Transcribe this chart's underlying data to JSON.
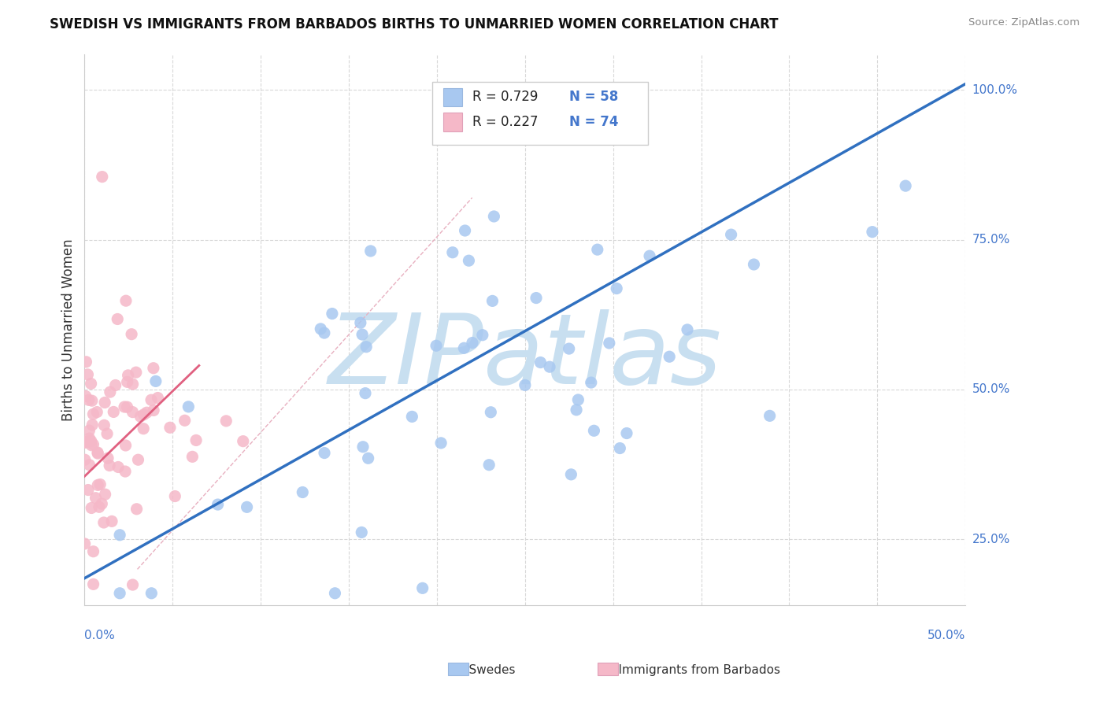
{
  "title": "SWEDISH VS IMMIGRANTS FROM BARBADOS BIRTHS TO UNMARRIED WOMEN CORRELATION CHART",
  "source": "Source: ZipAtlas.com",
  "ylabel_label": "Births to Unmarried Women",
  "yticks_right": [
    "25.0%",
    "50.0%",
    "75.0%",
    "100.0%"
  ],
  "yticks_right_vals": [
    0.25,
    0.5,
    0.75,
    1.0
  ],
  "xmin": 0.0,
  "xmax": 0.5,
  "ymin": 0.14,
  "ymax": 1.06,
  "legend_r1": "R = 0.729",
  "legend_n1": "N = 58",
  "legend_r2": "R = 0.227",
  "legend_n2": "N = 74",
  "swedes_color": "#a8c8f0",
  "barbados_color": "#f5b8c8",
  "line_blue": "#3070c0",
  "line_pink": "#e06080",
  "diag_color": "#f0c0d0",
  "background_color": "#ffffff",
  "grid_color": "#d8d8d8",
  "watermark_text": "ZIPatlas",
  "watermark_color": "#c8dff0",
  "blue_line_x0": 0.0,
  "blue_line_y0": 0.185,
  "blue_line_x1": 0.5,
  "blue_line_y1": 1.01,
  "pink_line_x0": 0.0,
  "pink_line_y0": 0.355,
  "pink_line_x1": 0.065,
  "pink_line_y1": 0.54
}
